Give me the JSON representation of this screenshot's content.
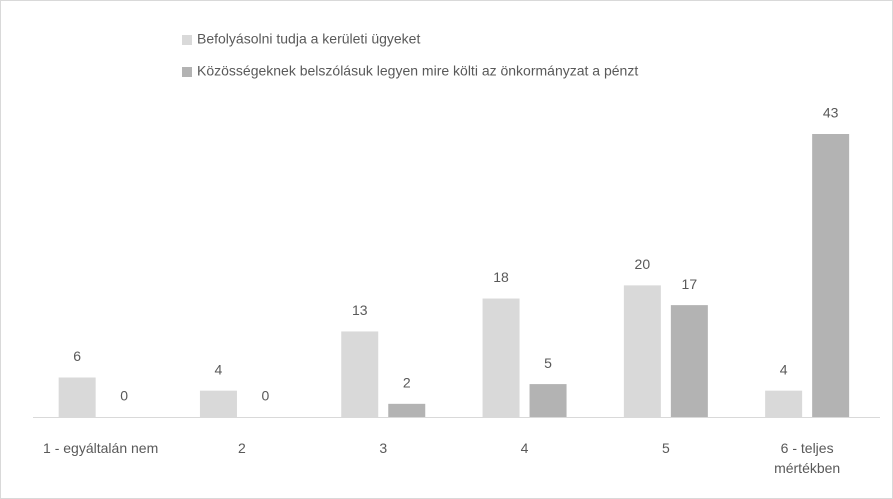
{
  "chart_data": {
    "type": "bar",
    "categories": [
      "1 - egyáltalán nem",
      "2",
      "3",
      "4",
      "5",
      "6 - teljes mértékben"
    ],
    "series": [
      {
        "name": "Befolyásolni tudja a kerületi ügyeket",
        "color": "#d9d9d9",
        "values": [
          6,
          4,
          13,
          18,
          20,
          4
        ]
      },
      {
        "name": "Közösségeknek belszólásuk legyen mire költi az önkormányzat a pénzt",
        "color": "#b3b3b3",
        "values": [
          0,
          0,
          2,
          5,
          17,
          43
        ]
      }
    ],
    "legend": "top-left"
  }
}
